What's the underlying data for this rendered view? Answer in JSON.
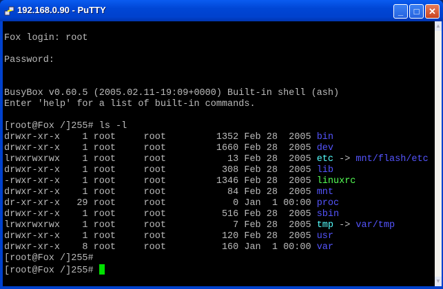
{
  "window": {
    "title": "192.168.0.90 - PuTTY",
    "minimize": "_",
    "maximize": "□",
    "close": "✕"
  },
  "colors": {
    "directory": "#5555ff",
    "symlink": "#55ffff",
    "executable": "#55ff55",
    "cursor": "#00e000",
    "text": "#bbbbbb"
  },
  "terminal": {
    "pre_lines": [
      "",
      "Fox login: root",
      "",
      "Password:",
      "",
      "",
      "BusyBox v0.60.5 (2005.02.11-19:09+0000) Built-in shell (ash)",
      "Enter 'help' for a list of built-in commands.",
      "",
      "[root@Fox /]255# ls -l"
    ],
    "listing": [
      {
        "meta": "drwxr-xr-x    1 root     root         1352 Feb 28  2005 ",
        "name": "bin",
        "type": "dir",
        "target": ""
      },
      {
        "meta": "drwxr-xr-x    1 root     root         1660 Feb 28  2005 ",
        "name": "dev",
        "type": "dir",
        "target": ""
      },
      {
        "meta": "lrwxrwxrwx    1 root     root           13 Feb 28  2005 ",
        "name": "etc",
        "type": "lnk",
        "target": "mnt/flash/etc"
      },
      {
        "meta": "drwxr-xr-x    1 root     root          308 Feb 28  2005 ",
        "name": "lib",
        "type": "dir",
        "target": ""
      },
      {
        "meta": "-rwxr-xr-x    1 root     root         1346 Feb 28  2005 ",
        "name": "linuxrc",
        "type": "exe",
        "target": ""
      },
      {
        "meta": "drwxr-xr-x    1 root     root           84 Feb 28  2005 ",
        "name": "mnt",
        "type": "dir",
        "target": ""
      },
      {
        "meta": "dr-xr-xr-x   29 root     root            0 Jan  1 00:00 ",
        "name": "proc",
        "type": "dir",
        "target": ""
      },
      {
        "meta": "drwxr-xr-x    1 root     root          516 Feb 28  2005 ",
        "name": "sbin",
        "type": "dir",
        "target": ""
      },
      {
        "meta": "lrwxrwxrwx    1 root     root            7 Feb 28  2005 ",
        "name": "tmp",
        "type": "lnk",
        "target": "var/tmp"
      },
      {
        "meta": "drwxr-xr-x    1 root     root          120 Feb 28  2005 ",
        "name": "usr",
        "type": "dir",
        "target": ""
      },
      {
        "meta": "drwxr-xr-x    8 root     root          160 Jan  1 00:00 ",
        "name": "var",
        "type": "dir",
        "target": ""
      }
    ],
    "post_lines": [
      "[root@Fox /]255#"
    ],
    "prompt": "[root@Fox /]255# "
  }
}
